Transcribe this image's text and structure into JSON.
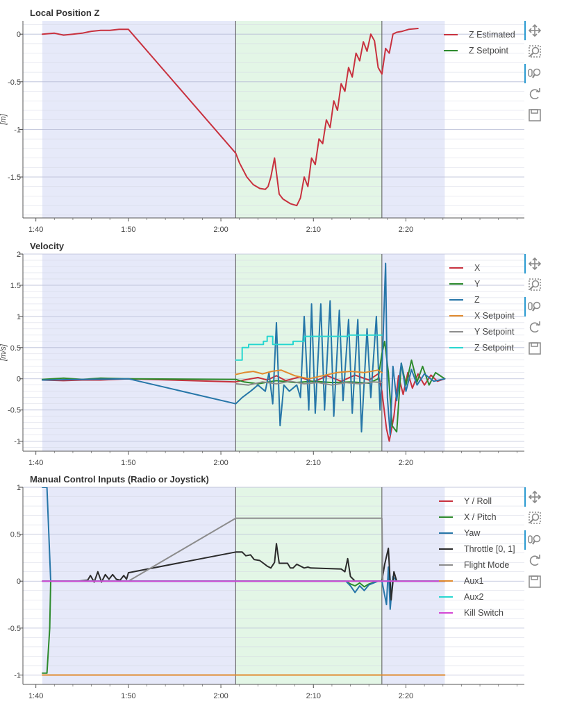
{
  "charts": [
    {
      "title": "Local Position Z",
      "ylabel": "[m]",
      "yticks": [
        {
          "v": 0,
          "t": "0"
        },
        {
          "v": -0.5,
          "t": "-0.5"
        },
        {
          "v": -1,
          "t": "-1"
        },
        {
          "v": -1.5,
          "t": "-1.5"
        }
      ],
      "ylim": [
        -1.93,
        0.14
      ],
      "legend": [
        {
          "label": "Z Estimated",
          "color": "#c8313e"
        },
        {
          "label": "Z Setpoint",
          "color": "#2c8a2c"
        }
      ]
    },
    {
      "title": "Velocity",
      "ylabel": "[m/s]",
      "yticks": [
        {
          "v": 2,
          "t": "2"
        },
        {
          "v": 1.5,
          "t": "1.5"
        },
        {
          "v": 1,
          "t": "1"
        },
        {
          "v": 0.5,
          "t": "0.5"
        },
        {
          "v": 0,
          "t": "0"
        },
        {
          "v": -0.5,
          "t": "-0.5"
        },
        {
          "v": -1,
          "t": "-1"
        }
      ],
      "ylim": [
        -1.16,
        2.0
      ],
      "legend": [
        {
          "label": "X",
          "color": "#c8313e"
        },
        {
          "label": "Y",
          "color": "#2c8a2c"
        },
        {
          "label": "Z",
          "color": "#2676a8"
        },
        {
          "label": "X Setpoint",
          "color": "#e08a2e"
        },
        {
          "label": "Y Setpoint",
          "color": "#8c8c8c"
        },
        {
          "label": "Z Setpoint",
          "color": "#28d6d0"
        }
      ]
    },
    {
      "title": "Manual Control Inputs (Radio or Joystick)",
      "ylabel": "",
      "yticks": [
        {
          "v": 1,
          "t": "1"
        },
        {
          "v": 0.5,
          "t": "0.5"
        },
        {
          "v": 0,
          "t": "0"
        },
        {
          "v": -0.5,
          "t": "-0.5"
        },
        {
          "v": -1,
          "t": "-1"
        }
      ],
      "ylim": [
        -1.1,
        1.0
      ],
      "legend": [
        {
          "label": "Y / Roll",
          "color": "#c8313e"
        },
        {
          "label": "X / Pitch",
          "color": "#2c8a2c"
        },
        {
          "label": "Yaw",
          "color": "#2676a8"
        },
        {
          "label": "Throttle [0, 1]",
          "color": "#2b2b2b"
        },
        {
          "label": "Flight Mode",
          "color": "#8c8c8c"
        },
        {
          "label": "Aux1",
          "color": "#e08a2e"
        },
        {
          "label": "Aux2",
          "color": "#28d6d0"
        },
        {
          "label": "Kill Switch",
          "color": "#d447d4"
        }
      ]
    }
  ],
  "xticks": [
    {
      "v": 100,
      "t": "1:40"
    },
    {
      "v": 110,
      "t": "1:50"
    },
    {
      "v": 120,
      "t": "2:00"
    },
    {
      "v": 130,
      "t": "2:10"
    },
    {
      "v": 140,
      "t": "2:20"
    }
  ],
  "xlim": [
    98.6,
    152.8
  ],
  "mode_bands": [
    {
      "from": 100.7,
      "to": 121.6,
      "color": "#e6e9f9"
    },
    {
      "from": 121.6,
      "to": 137.4,
      "color": "#e3f6e6"
    },
    {
      "from": 137.4,
      "to": 144.2,
      "color": "#e6e9f9"
    }
  ],
  "mode_lines": [
    121.6,
    137.4
  ],
  "toolbar": {
    "icons": [
      "pan-icon",
      "box-zoom-icon",
      "wheel-zoom-icon",
      "reset-icon",
      "save-icon"
    ],
    "accent": "#2b9bd1"
  },
  "chart_data": [
    {
      "type": "line",
      "title": "Local Position Z",
      "ylabel": "[m]",
      "ylim": [
        -1.93,
        0.14
      ],
      "series": [
        {
          "name": "Z Estimated",
          "color": "#c8313e",
          "x": [
            100.7,
            102,
            103,
            104,
            105,
            106,
            107,
            108,
            109,
            110,
            121.6,
            122,
            122.8,
            123.5,
            124.2,
            124.8,
            125.1,
            125.4,
            125.8,
            126.3,
            126.7,
            127.5,
            128.2,
            128.6,
            129,
            129.4,
            129.8,
            130.2,
            130.6,
            131,
            131.4,
            131.8,
            132.2,
            132.6,
            133,
            133.4,
            133.8,
            134.2,
            134.6,
            135,
            135.4,
            135.8,
            136.2,
            136.6,
            137,
            137.4,
            137.8,
            138.2,
            138.6,
            139,
            139.6,
            140.3,
            141.3
          ],
          "y": [
            0,
            0.01,
            -0.01,
            0,
            0.01,
            0.03,
            0.04,
            0.04,
            0.05,
            0.05,
            -1.25,
            -1.35,
            -1.5,
            -1.58,
            -1.62,
            -1.63,
            -1.6,
            -1.5,
            -1.3,
            -1.68,
            -1.73,
            -1.78,
            -1.8,
            -1.72,
            -1.5,
            -1.6,
            -1.3,
            -1.37,
            -1.1,
            -1.15,
            -0.9,
            -0.98,
            -0.7,
            -0.8,
            -0.52,
            -0.6,
            -0.35,
            -0.45,
            -0.2,
            -0.28,
            -0.08,
            -0.18,
            0,
            -0.07,
            -0.35,
            -0.42,
            -0.15,
            -0.2,
            0,
            0.02,
            0.03,
            0.05,
            0.06
          ]
        },
        {
          "name": "Z Setpoint",
          "color": "#2c8a2c",
          "x": [],
          "y": []
        }
      ]
    },
    {
      "type": "line",
      "title": "Velocity",
      "ylabel": "[m/s]",
      "ylim": [
        -1.16,
        2.0
      ],
      "series": [
        {
          "name": "X",
          "color": "#c8313e",
          "x": [
            100.7,
            103,
            105,
            107,
            110,
            121.6,
            122.5,
            124,
            125,
            126,
            127,
            128.5,
            130,
            131.5,
            133,
            134.5,
            136,
            137,
            137.4,
            137.9,
            138.2,
            138.7,
            139.2,
            139.7,
            140.2,
            140.7,
            141.3,
            142,
            142.7,
            143.4,
            144.2
          ],
          "y": [
            -0.02,
            -0.03,
            -0.02,
            -0.02,
            0,
            -0.05,
            -0.02,
            0.02,
            -0.02,
            0.05,
            -0.03,
            0.03,
            -0.05,
            0.05,
            -0.04,
            0.06,
            -0.02,
            0.08,
            -0.2,
            -0.8,
            -1.0,
            -0.6,
            0.05,
            -0.25,
            0.1,
            -0.15,
            0.08,
            -0.1,
            0.06,
            -0.04,
            0
          ]
        },
        {
          "name": "Y",
          "color": "#2c8a2c",
          "x": [
            100.7,
            103,
            105,
            107,
            110,
            121.6,
            122.5,
            124,
            126,
            128,
            130,
            132,
            134,
            136,
            137,
            137.4,
            137.7,
            138.1,
            138.5,
            139,
            139.5,
            140,
            140.6,
            141.2,
            141.8,
            142.5,
            143.2,
            144.2
          ],
          "y": [
            -0.01,
            0.01,
            -0.01,
            0.01,
            0,
            -0.01,
            -0.05,
            -0.08,
            -0.03,
            -0.06,
            -0.04,
            -0.06,
            -0.05,
            -0.07,
            0,
            0.4,
            0.6,
            0.1,
            -0.75,
            -0.85,
            0.25,
            -0.1,
            0.3,
            -0.05,
            0.2,
            -0.1,
            0.1,
            0
          ]
        },
        {
          "name": "Z",
          "color": "#2676a8",
          "x": [
            100.7,
            110,
            121.6,
            122.3,
            123.2,
            124,
            124.8,
            125.2,
            125.6,
            126,
            126.4,
            126.8,
            127.4,
            128.2,
            128.6,
            129,
            129.5,
            129.8,
            130.2,
            130.8,
            131.2,
            131.8,
            132.2,
            132.8,
            133.2,
            133.8,
            134.2,
            134.8,
            135.2,
            135.8,
            136.2,
            136.8,
            137.2,
            137.4,
            137.8,
            138.0,
            138.3,
            138.6,
            139,
            139.5,
            140,
            140.6,
            141.2,
            142,
            143,
            144.2
          ],
          "y": [
            -0.02,
            0,
            -0.4,
            -0.3,
            -0.2,
            -0.1,
            -0.2,
            0.1,
            -0.4,
            0.9,
            -0.75,
            -0.1,
            -0.2,
            -0.1,
            -0.3,
            1.0,
            -0.5,
            1.2,
            -0.55,
            1.2,
            -0.5,
            1.25,
            -0.6,
            1.1,
            -0.35,
            0.95,
            -0.55,
            0.95,
            -0.85,
            0.8,
            -0.3,
            1.0,
            -0.5,
            0.1,
            1.85,
            -0.3,
            -0.9,
            0.2,
            -0.35,
            0.25,
            -0.2,
            0.15,
            -0.1,
            0.08,
            -0.04,
            0
          ]
        },
        {
          "name": "X Setpoint",
          "color": "#e08a2e",
          "x": [
            121.6,
            122.5,
            123.5,
            124.5,
            125.5,
            126.5,
            128,
            129.5,
            131,
            132.5,
            134,
            135.5,
            137,
            137.4
          ],
          "y": [
            0.07,
            0.1,
            0.12,
            0.08,
            0.12,
            0.14,
            0.05,
            0.0,
            0.05,
            0.1,
            0.12,
            0.1,
            0.14,
            0.1
          ]
        },
        {
          "name": "Y Setpoint",
          "color": "#8c8c8c",
          "x": [
            121.6,
            123,
            124.5,
            126,
            127.5,
            129,
            130.5,
            132,
            133.5,
            135,
            136.5,
            137.4
          ],
          "y": [
            -0.08,
            -0.1,
            -0.05,
            -0.08,
            -0.04,
            -0.08,
            -0.06,
            -0.1,
            -0.06,
            -0.08,
            -0.05,
            -0.06
          ]
        },
        {
          "name": "Z Setpoint",
          "color": "#28d6d0",
          "x": [
            121.6,
            122.3,
            122.3,
            123.0,
            123.0,
            124.6,
            124.6,
            125.0,
            125.0,
            125.6,
            125.6,
            127.8,
            127.8,
            129.0,
            129.0,
            133.8,
            133.8,
            137.4
          ],
          "y": [
            0.3,
            0.3,
            0.5,
            0.5,
            0.55,
            0.55,
            0.6,
            0.6,
            0.68,
            0.68,
            0.55,
            0.55,
            0.6,
            0.6,
            0.68,
            0.68,
            0.7,
            0.7
          ]
        }
      ]
    },
    {
      "type": "line",
      "title": "Manual Control Inputs (Radio or Joystick)",
      "ylim": [
        -1.1,
        1.0
      ],
      "series": [
        {
          "name": "Y / Roll",
          "color": "#c8313e",
          "x": [
            100.7,
            144.2
          ],
          "y": [
            0,
            0
          ]
        },
        {
          "name": "X / Pitch",
          "color": "#2c8a2c",
          "x": [
            100.7,
            101.2,
            101.5,
            101.6,
            102,
            130,
            133.5,
            134,
            134.5,
            135,
            135.5,
            136,
            137,
            137.4,
            144.2
          ],
          "y": [
            -0.98,
            -0.98,
            -0.5,
            0,
            0,
            0,
            0,
            -0.03,
            -0.05,
            -0.02,
            -0.06,
            -0.03,
            0,
            0,
            0
          ]
        },
        {
          "name": "Yaw",
          "color": "#2676a8",
          "x": [
            100.7,
            101.2,
            101.6,
            101.9,
            130,
            133.5,
            134,
            134.5,
            135,
            135.5,
            136,
            137,
            137.4,
            137.9,
            138.1,
            138.3,
            138.6,
            139,
            144.2
          ],
          "y": [
            1,
            1,
            0.0,
            0,
            0,
            0,
            -0.05,
            -0.12,
            -0.05,
            -0.1,
            -0.04,
            0,
            0,
            -0.25,
            0.15,
            -0.3,
            0.05,
            0,
            0
          ]
        },
        {
          "name": "Throttle [0, 1]",
          "color": "#2b2b2b",
          "x": [
            101.6,
            104.5,
            105.6,
            105.9,
            106.3,
            106.7,
            107.1,
            107.5,
            107.9,
            108.3,
            108.7,
            109.1,
            109.5,
            109.8,
            110,
            121.6,
            122.3,
            122.7,
            123.2,
            123.6,
            124.2,
            125.0,
            125.4,
            125.8,
            126.0,
            126.3,
            127.2,
            127.5,
            127.8,
            128.2,
            129.0,
            129.4,
            129.7,
            133,
            133.4,
            133.7,
            134,
            134.5,
            135,
            135.5,
            136,
            137,
            137.4,
            137.7,
            138.1,
            138.4,
            138.7,
            139,
            144.2
          ],
          "y": [
            0,
            0,
            0.01,
            0.06,
            -0.01,
            0.1,
            -0.01,
            0.07,
            0.02,
            0.07,
            0.02,
            0.01,
            0.06,
            0.02,
            0.09,
            0.31,
            0.31,
            0.27,
            0.28,
            0.23,
            0.22,
            0.16,
            0.14,
            0.2,
            0.4,
            0.19,
            0.19,
            0.14,
            0.14,
            0.18,
            0.14,
            0.15,
            0.14,
            0.13,
            0.1,
            0.24,
            0.05,
            0,
            0,
            0,
            0,
            0,
            0,
            0.18,
            0.35,
            -0.2,
            0.1,
            0,
            0
          ]
        },
        {
          "name": "Flight Mode",
          "color": "#8c8c8c",
          "x": [
            100.7,
            110,
            121.6,
            137.4,
            137.5,
            144.2
          ],
          "y": [
            0,
            0,
            0.67,
            0.67,
            0,
            0
          ]
        },
        {
          "name": "Aux1",
          "color": "#e08a2e",
          "x": [
            100.7,
            144.2
          ],
          "y": [
            -1,
            -1
          ]
        },
        {
          "name": "Aux2",
          "color": "#28d6d0",
          "x": [
            100.7,
            144.2
          ],
          "y": [
            0,
            0
          ]
        },
        {
          "name": "Kill Switch",
          "color": "#d447d4",
          "x": [
            100.7,
            144.2
          ],
          "y": [
            0,
            0
          ]
        }
      ]
    }
  ]
}
